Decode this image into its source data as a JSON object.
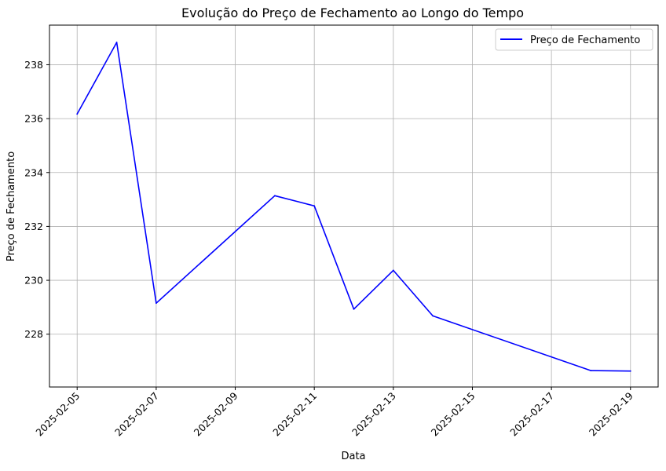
{
  "chart_data": {
    "type": "line",
    "title": "Evolução do Preço de Fechamento ao Longo do Tempo",
    "xlabel": "Data",
    "ylabel": "Preço de Fechamento",
    "grid": true,
    "legend_position": "top-right",
    "x_ticks": [
      "2025-02-05",
      "2025-02-07",
      "2025-02-09",
      "2025-02-11",
      "2025-02-13",
      "2025-02-15",
      "2025-02-17",
      "2025-02-19"
    ],
    "y_ticks": [
      228,
      230,
      232,
      234,
      236,
      238
    ],
    "xlim": [
      "2025-02-04T07:12",
      "2025-02-19T16:48"
    ],
    "ylim": [
      226.04,
      239.47
    ],
    "series": [
      {
        "name": "Preço de Fechamento",
        "color": "#0000ff",
        "x": [
          "2025-02-05",
          "2025-02-06",
          "2025-02-07",
          "2025-02-10",
          "2025-02-11",
          "2025-02-12",
          "2025-02-13",
          "2025-02-14",
          "2025-02-18",
          "2025-02-19"
        ],
        "y": [
          236.17,
          238.83,
          229.15,
          233.14,
          232.76,
          228.93,
          230.37,
          228.68,
          226.65,
          226.63
        ]
      }
    ]
  }
}
